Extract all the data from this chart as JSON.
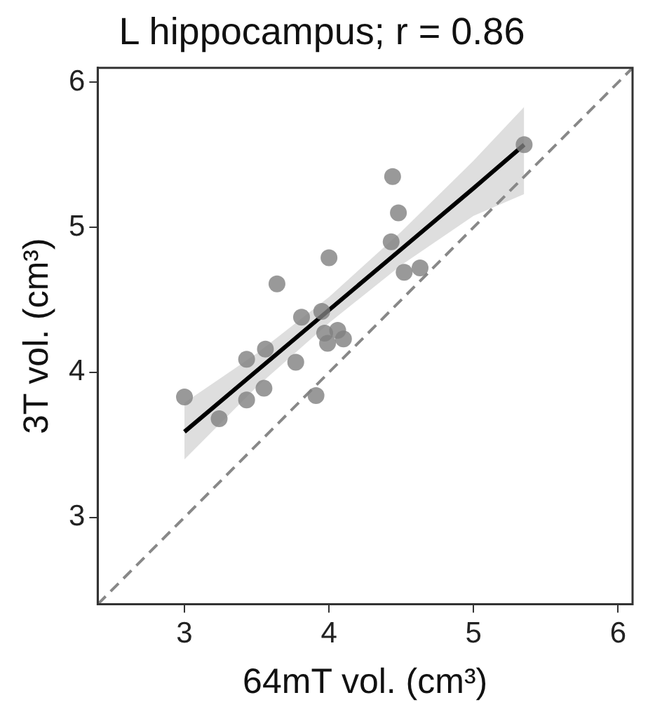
{
  "chart_data": {
    "type": "scatter",
    "title": "L hippocampus; r = 0.86",
    "xlabel": "64mT vol. (cm³)",
    "ylabel": "3T vol. (cm³)",
    "xlim": [
      2.4,
      6.1
    ],
    "ylim": [
      2.4,
      6.1
    ],
    "xticks": [
      3,
      4,
      5,
      6
    ],
    "yticks": [
      3,
      4,
      5,
      6
    ],
    "grid": false,
    "legend": false,
    "series": [
      {
        "color": "#808080",
        "marker": "circle",
        "x": [
          3.0,
          3.24,
          3.43,
          3.43,
          3.55,
          3.56,
          3.64,
          3.77,
          3.81,
          3.91,
          3.95,
          3.97,
          3.99,
          4.0,
          4.06,
          4.1,
          4.43,
          4.44,
          4.48,
          4.52,
          4.63,
          5.35
        ],
        "values": [
          3.83,
          3.68,
          3.81,
          4.09,
          3.89,
          4.16,
          4.61,
          4.07,
          4.38,
          3.84,
          4.42,
          4.27,
          4.2,
          4.79,
          4.29,
          4.23,
          4.9,
          5.35,
          5.1,
          4.69,
          4.72,
          5.57
        ]
      },
      {
        "type": "line",
        "color": "#000000",
        "line_style": "solid",
        "x": [
          3.0,
          3.5,
          4.0,
          4.5,
          5.0,
          5.35
        ],
        "values": [
          3.59,
          4.01,
          4.43,
          4.85,
          5.27,
          5.57
        ],
        "lower": [
          3.4,
          3.9,
          4.34,
          4.74,
          5.08,
          5.23
        ],
        "upper": [
          3.79,
          4.13,
          4.52,
          4.97,
          5.46,
          5.83
        ]
      },
      {
        "type": "line",
        "color": "#888888",
        "line_style": "dashed",
        "x": [
          2.4,
          6.1
        ],
        "values": [
          2.4,
          6.1
        ]
      }
    ]
  }
}
